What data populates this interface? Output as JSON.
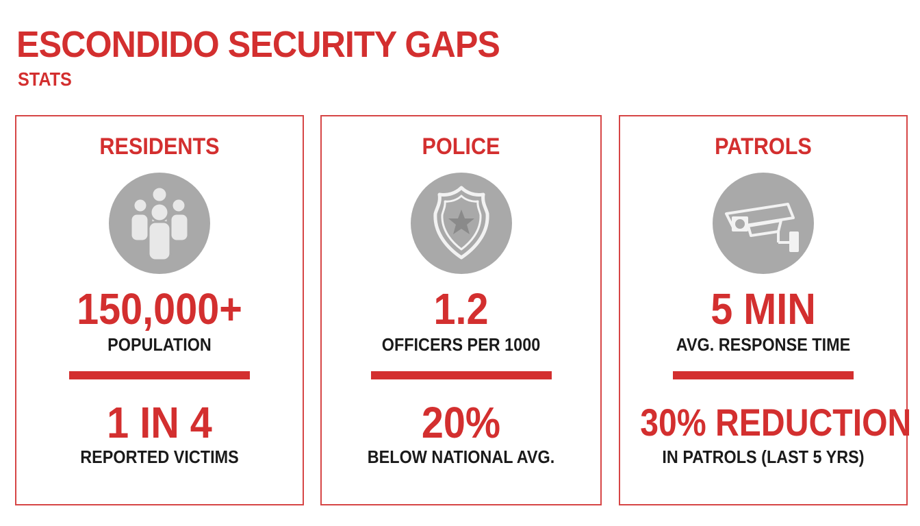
{
  "header": {
    "title": "ESCONDIDO SECURITY GAPS",
    "subtitle": "STATS"
  },
  "cards": [
    {
      "heading": "RESIDENTS",
      "icon": "people-group-icon",
      "stat1_value": "150,000+",
      "stat1_label": "POPULATION",
      "stat2_value": "1 IN 4",
      "stat2_label": "REPORTED VICTIMS"
    },
    {
      "heading": "POLICE",
      "icon": "police-badge-icon",
      "stat1_value": "1.2",
      "stat1_label": "OFFICERS PER 1000",
      "stat2_value": "20%",
      "stat2_label": "BELOW NATIONAL AVG."
    },
    {
      "heading": "PATROLS",
      "icon": "security-camera-icon",
      "stat1_value": "5 MIN",
      "stat1_label": "AVG. RESPONSE TIME",
      "stat2_value": "30% REDUCTION",
      "stat2_label": "IN PATROLS (LAST 5 YRS)"
    }
  ],
  "colors": {
    "accent": "#d32f2f",
    "icon_bg": "#a9a9a9",
    "text": "#1a1a1a"
  }
}
